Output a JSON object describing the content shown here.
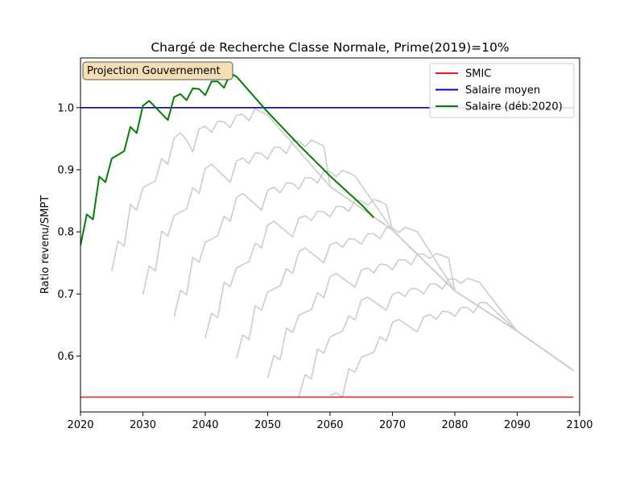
{
  "chart_data": {
    "type": "line",
    "title": "Chargé de Recherche Classe Normale, Prime(2019)=10%",
    "xlabel": "",
    "ylabel": "Ratio revenu/SMPT",
    "xlim": [
      2020,
      2100
    ],
    "ylim": [
      0.51,
      1.08
    ],
    "x_ticks": [
      2020,
      2030,
      2040,
      2050,
      2060,
      2070,
      2080,
      2090,
      2100
    ],
    "y_ticks": [
      0.6,
      0.7,
      0.8,
      0.9,
      1.0
    ],
    "y_tick_labels": [
      "0.6",
      "0.7",
      "0.8",
      "0.9",
      "1.0"
    ],
    "grid": false,
    "legend_position": "top-right",
    "annotation": "Projection Gouvernement",
    "colors": {
      "smic": "#e31a1c",
      "salaire_moyen": "#0000cc",
      "salaire": "#008000",
      "cohort": "#cccccc",
      "annotation_bg": "#f5deb3"
    },
    "series": [
      {
        "name": "SMIC",
        "color": "#e31a1c",
        "x": [
          2020,
          2099
        ],
        "y": [
          0.534,
          0.534
        ]
      },
      {
        "name": "Salaire moyen",
        "color": "#0000cc",
        "x": [
          2020,
          2099
        ],
        "y": [
          1.0,
          1.0
        ]
      },
      {
        "name": "Salaire (déb:2020)",
        "color": "#008000",
        "x": [
          2020,
          2021,
          2022,
          2023,
          2024,
          2025,
          2027,
          2028,
          2029,
          2030,
          2031,
          2034,
          2035,
          2036,
          2037,
          2038,
          2039,
          2040,
          2041,
          2042,
          2043,
          2044,
          2045,
          2050,
          2055,
          2060,
          2065,
          2067
        ],
        "y": [
          0.778,
          0.828,
          0.82,
          0.889,
          0.88,
          0.918,
          0.93,
          0.969,
          0.959,
          1.003,
          1.011,
          0.98,
          1.017,
          1.022,
          1.012,
          1.031,
          1.03,
          1.02,
          1.042,
          1.042,
          1.032,
          1.055,
          1.05,
          0.993,
          0.94,
          0.89,
          0.844,
          0.823
        ]
      }
    ],
    "background_series": [
      {
        "x": [
          2025,
          2026,
          2027,
          2028,
          2029,
          2030,
          2032,
          2033,
          2034,
          2035,
          2036,
          2037,
          2038,
          2039,
          2040,
          2041,
          2042,
          2043,
          2044,
          2045,
          2046,
          2047,
          2048,
          2049,
          2050,
          2060,
          2070,
          2080,
          2090,
          2099
        ],
        "y": [
          0.737,
          0.785,
          0.777,
          0.844,
          0.835,
          0.871,
          0.882,
          0.918,
          0.909,
          0.951,
          0.959,
          0.948,
          0.929,
          0.966,
          0.97,
          0.96,
          0.978,
          0.977,
          0.968,
          0.988,
          0.989,
          0.979,
          0.998,
          0.993,
          0.988,
          0.873,
          0.803,
          0.705,
          0.64,
          0.577
        ]
      },
      {
        "x": [
          2030,
          2031,
          2032,
          2033,
          2034,
          2035,
          2037,
          2038,
          2039,
          2040,
          2041,
          2044,
          2045,
          2046,
          2047,
          2048,
          2049,
          2050,
          2051,
          2052,
          2053,
          2054,
          2055,
          2056,
          2057,
          2058,
          2059,
          2060,
          2070,
          2080,
          2090,
          2099
        ],
        "y": [
          0.699,
          0.745,
          0.737,
          0.801,
          0.793,
          0.826,
          0.837,
          0.871,
          0.862,
          0.902,
          0.909,
          0.88,
          0.914,
          0.919,
          0.91,
          0.927,
          0.926,
          0.917,
          0.936,
          0.936,
          0.926,
          0.947,
          0.946,
          0.937,
          0.948,
          0.943,
          0.938,
          0.873,
          0.803,
          0.705,
          0.64,
          0.577
        ]
      },
      {
        "x": [
          2035,
          2036,
          2037,
          2038,
          2039,
          2040,
          2042,
          2043,
          2044,
          2045,
          2046,
          2049,
          2050,
          2051,
          2052,
          2053,
          2054,
          2055,
          2056,
          2057,
          2058,
          2059,
          2060,
          2061,
          2062,
          2063,
          2064,
          2070,
          2080,
          2090,
          2099
        ],
        "y": [
          0.663,
          0.706,
          0.699,
          0.759,
          0.751,
          0.783,
          0.794,
          0.825,
          0.817,
          0.855,
          0.862,
          0.835,
          0.867,
          0.872,
          0.863,
          0.879,
          0.878,
          0.869,
          0.887,
          0.887,
          0.879,
          0.898,
          0.897,
          0.889,
          0.899,
          0.895,
          0.89,
          0.803,
          0.705,
          0.64,
          0.577
        ]
      },
      {
        "x": [
          2040,
          2041,
          2042,
          2043,
          2044,
          2045,
          2047,
          2048,
          2049,
          2050,
          2051,
          2054,
          2055,
          2056,
          2057,
          2058,
          2059,
          2060,
          2061,
          2062,
          2063,
          2064,
          2065,
          2066,
          2067,
          2068,
          2069,
          2070,
          2080,
          2090,
          2099
        ],
        "y": [
          0.629,
          0.669,
          0.662,
          0.719,
          0.712,
          0.742,
          0.752,
          0.782,
          0.774,
          0.811,
          0.817,
          0.792,
          0.822,
          0.826,
          0.818,
          0.833,
          0.832,
          0.824,
          0.841,
          0.841,
          0.833,
          0.851,
          0.85,
          0.843,
          0.852,
          0.849,
          0.844,
          0.803,
          0.705,
          0.64,
          0.577
        ]
      },
      {
        "x": [
          2045,
          2046,
          2047,
          2048,
          2049,
          2050,
          2052,
          2053,
          2054,
          2055,
          2056,
          2059,
          2060,
          2061,
          2062,
          2063,
          2064,
          2065,
          2066,
          2067,
          2068,
          2069,
          2070,
          2071,
          2072,
          2073,
          2074,
          2080,
          2090,
          2099
        ],
        "y": [
          0.596,
          0.634,
          0.627,
          0.681,
          0.674,
          0.703,
          0.713,
          0.741,
          0.733,
          0.768,
          0.774,
          0.75,
          0.779,
          0.783,
          0.775,
          0.789,
          0.788,
          0.78,
          0.797,
          0.797,
          0.789,
          0.806,
          0.806,
          0.799,
          0.807,
          0.804,
          0.8,
          0.705,
          0.64,
          0.577
        ]
      },
      {
        "x": [
          2050,
          2051,
          2052,
          2053,
          2054,
          2055,
          2057,
          2058,
          2059,
          2060,
          2061,
          2064,
          2065,
          2066,
          2067,
          2068,
          2069,
          2070,
          2071,
          2072,
          2073,
          2074,
          2075,
          2076,
          2077,
          2078,
          2079,
          2080,
          2090,
          2099
        ],
        "y": [
          0.565,
          0.601,
          0.594,
          0.645,
          0.638,
          0.666,
          0.675,
          0.702,
          0.694,
          0.728,
          0.733,
          0.711,
          0.738,
          0.742,
          0.734,
          0.748,
          0.747,
          0.739,
          0.755,
          0.755,
          0.747,
          0.764,
          0.764,
          0.757,
          0.765,
          0.762,
          0.758,
          0.705,
          0.64,
          0.577
        ]
      },
      {
        "x": [
          2055,
          2056,
          2057,
          2058,
          2059,
          2060,
          2062,
          2063,
          2064,
          2065,
          2066,
          2069,
          2070,
          2071,
          2072,
          2073,
          2074,
          2075,
          2076,
          2077,
          2078,
          2079,
          2080,
          2081,
          2082,
          2083,
          2084,
          2090,
          2099
        ],
        "y": [
          0.535,
          0.57,
          0.563,
          0.611,
          0.605,
          0.631,
          0.64,
          0.665,
          0.658,
          0.69,
          0.695,
          0.674,
          0.699,
          0.703,
          0.696,
          0.709,
          0.708,
          0.7,
          0.716,
          0.716,
          0.708,
          0.724,
          0.724,
          0.717,
          0.725,
          0.722,
          0.718,
          0.64,
          0.577
        ]
      },
      {
        "x": [
          2060,
          2061,
          2062,
          2063,
          2064,
          2065,
          2067,
          2068,
          2069,
          2070,
          2071,
          2074,
          2075,
          2076,
          2077,
          2078,
          2079,
          2080,
          2081,
          2082,
          2083,
          2084,
          2085,
          2090,
          2099
        ],
        "y": [
          0.537,
          0.541,
          0.534,
          0.58,
          0.574,
          0.598,
          0.606,
          0.631,
          0.624,
          0.654,
          0.659,
          0.639,
          0.663,
          0.667,
          0.659,
          0.672,
          0.671,
          0.664,
          0.678,
          0.678,
          0.67,
          0.686,
          0.686,
          0.64,
          0.577
        ]
      }
    ]
  }
}
